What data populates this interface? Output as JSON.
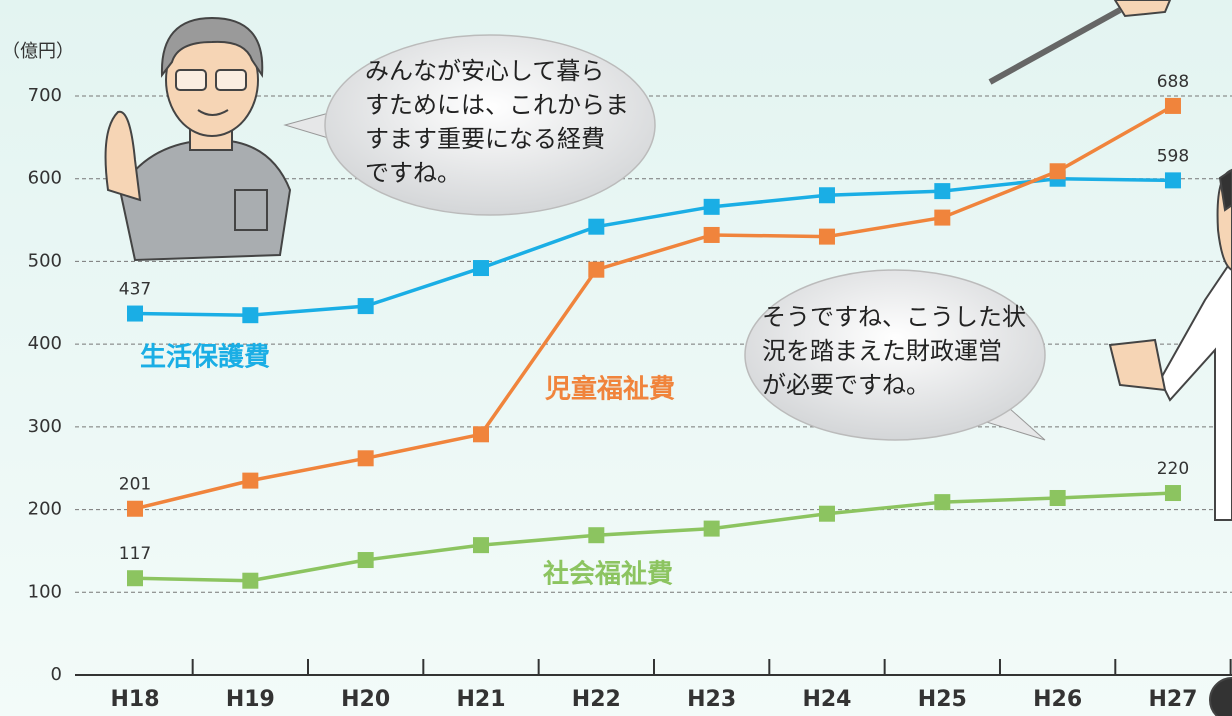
{
  "chart_data": {
    "type": "line",
    "ylabel": "（億円）",
    "categories": [
      "H18",
      "H19",
      "H20",
      "H21",
      "H22",
      "H23",
      "H24",
      "H25",
      "H26",
      "H27"
    ],
    "series": [
      {
        "name": "生活保護費",
        "color": "#1aaee5",
        "values": [
          437,
          435,
          446,
          492,
          542,
          566,
          580,
          585,
          600,
          598
        ]
      },
      {
        "name": "児童福祉費",
        "color": "#f0843c",
        "values": [
          201,
          235,
          262,
          291,
          490,
          532,
          530,
          553,
          609,
          688
        ]
      },
      {
        "name": "社会福祉費",
        "color": "#8cc460",
        "values": [
          117,
          114,
          139,
          157,
          169,
          177,
          195,
          209,
          214,
          220
        ]
      }
    ],
    "ylim": [
      0,
      700
    ],
    "yticks": [
      0,
      100,
      200,
      300,
      400,
      500,
      600,
      700
    ],
    "grid": true,
    "annotations": [
      {
        "lines": [
          "みんなが安心して暮ら",
          "すためには、これからま",
          "すます重要になる経費",
          "ですね。"
        ]
      },
      {
        "lines": [
          "そうですね、こうした状",
          "況を踏まえた財政運営",
          "が必要ですね。"
        ]
      }
    ]
  }
}
